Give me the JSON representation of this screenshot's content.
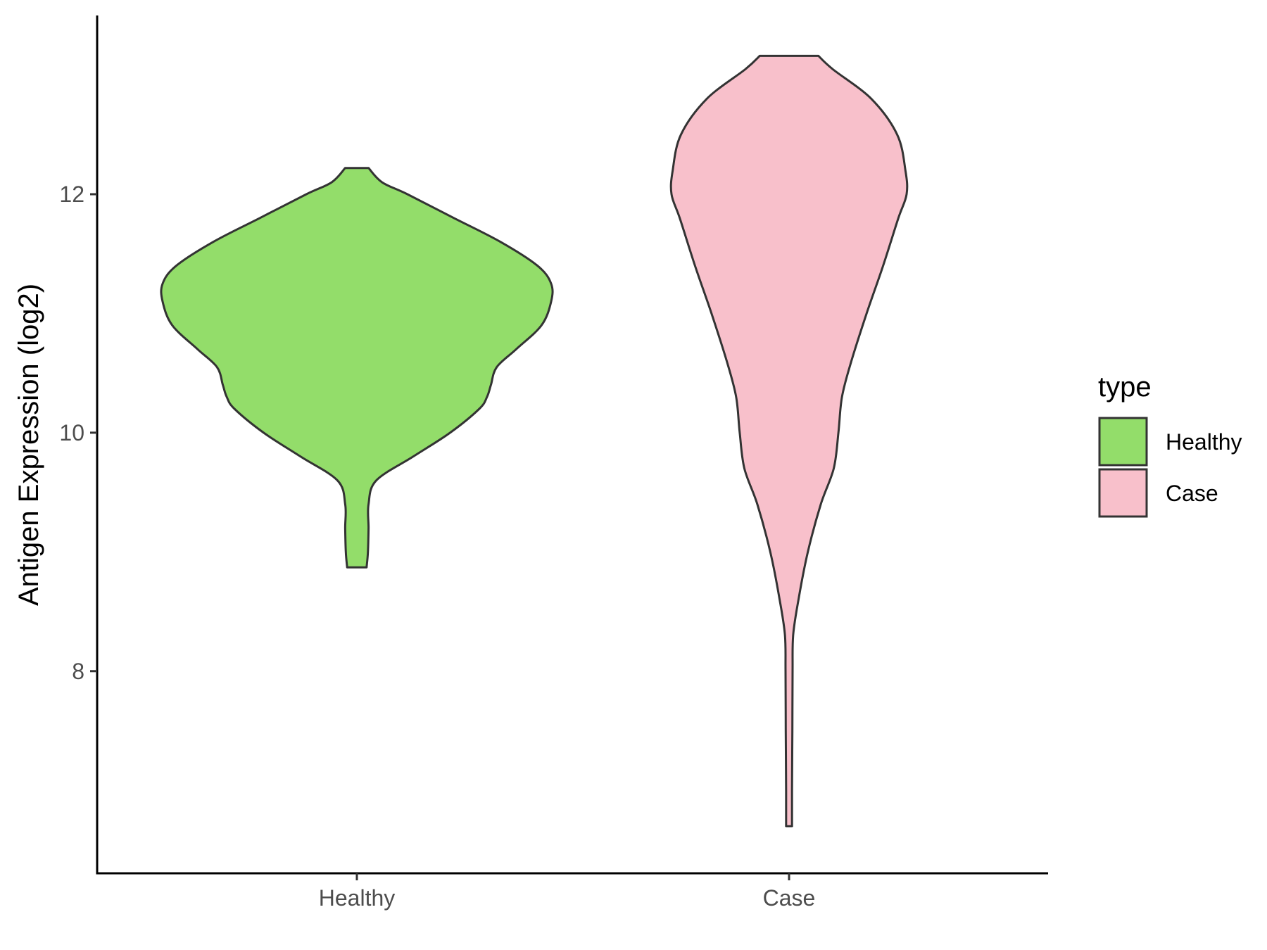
{
  "chart_data": {
    "type": "violin",
    "ylabel": "Antigen Expression (log2)",
    "xlabel": "",
    "categories": [
      "Healthy",
      "Case"
    ],
    "y_ticks": [
      8,
      10,
      12
    ],
    "ylim": [
      6.3,
      13.5
    ],
    "grid": false,
    "legend": {
      "title": "type",
      "position": "right",
      "entries": [
        "Healthy",
        "Case"
      ]
    },
    "colors": {
      "Healthy": "#93dd6a",
      "Case": "#f8c0cb",
      "outline": "#333333"
    },
    "series": [
      {
        "name": "Healthy",
        "min": 8.87,
        "max": 12.22,
        "density_profile": [
          [
            8.87,
            0.05
          ],
          [
            9.0,
            0.057
          ],
          [
            9.2,
            0.06
          ],
          [
            9.4,
            0.06
          ],
          [
            9.6,
            0.1
          ],
          [
            9.8,
            0.29
          ],
          [
            10.0,
            0.48
          ],
          [
            10.2,
            0.63
          ],
          [
            10.3,
            0.67
          ],
          [
            10.4,
            0.69
          ],
          [
            10.55,
            0.72
          ],
          [
            10.7,
            0.82
          ],
          [
            10.9,
            0.95
          ],
          [
            11.1,
            1.0
          ],
          [
            11.25,
            1.0
          ],
          [
            11.4,
            0.93
          ],
          [
            11.6,
            0.74
          ],
          [
            11.8,
            0.5
          ],
          [
            12.0,
            0.26
          ],
          [
            12.1,
            0.13
          ],
          [
            12.22,
            0.06
          ]
        ]
      },
      {
        "name": "Case",
        "min": 6.7,
        "max": 13.16,
        "density_profile": [
          [
            6.7,
            0.025
          ],
          [
            7.0,
            0.025
          ],
          [
            7.5,
            0.028
          ],
          [
            8.0,
            0.03
          ],
          [
            8.3,
            0.035
          ],
          [
            8.6,
            0.08
          ],
          [
            9.0,
            0.16
          ],
          [
            9.4,
            0.27
          ],
          [
            9.7,
            0.38
          ],
          [
            10.0,
            0.42
          ],
          [
            10.3,
            0.45
          ],
          [
            10.6,
            0.53
          ],
          [
            11.0,
            0.66
          ],
          [
            11.4,
            0.8
          ],
          [
            11.8,
            0.93
          ],
          [
            12.0,
            1.0
          ],
          [
            12.2,
            0.99
          ],
          [
            12.5,
            0.92
          ],
          [
            12.8,
            0.7
          ],
          [
            13.05,
            0.37
          ],
          [
            13.16,
            0.25
          ]
        ]
      }
    ]
  }
}
